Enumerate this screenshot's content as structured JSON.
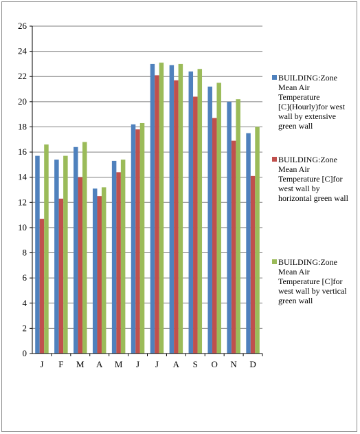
{
  "chart_data": {
    "type": "bar",
    "title": "",
    "xlabel": "",
    "ylabel": "",
    "categories": [
      "J",
      "F",
      "M",
      "A",
      "M",
      "J",
      "J",
      "A",
      "S",
      "O",
      "N",
      "D"
    ],
    "ylim": [
      0,
      26
    ],
    "yticks": [
      "0",
      "2",
      "4",
      "6",
      "8",
      "10",
      "12",
      "14",
      "16",
      "18",
      "20",
      "22",
      "24",
      "26"
    ],
    "grid": true,
    "legend_position": "right",
    "series": [
      {
        "name": "BUILDING:Zone Mean Air Temperature [C](Hourly)for west wall by extensive green wall",
        "legend_lines": [
          "BUILDING:Zone",
          "Mean Air",
          "Temperature",
          "[C](Hourly)for west",
          "wall by extensive",
          "green wall"
        ],
        "color": "#4f81bd",
        "values": [
          15.7,
          15.4,
          16.4,
          13.1,
          15.3,
          18.2,
          23.0,
          22.9,
          22.4,
          21.2,
          20.0,
          17.5
        ]
      },
      {
        "name": "BUILDING:Zone Mean Air Temperature [C]for west wall by horizontal green wall",
        "legend_lines": [
          "BUILDING:Zone",
          "Mean Air",
          "Temperature [C]for",
          "west wall by",
          "horizontal green wall"
        ],
        "color": "#c0504d",
        "values": [
          10.7,
          12.3,
          14.0,
          12.5,
          14.4,
          17.8,
          22.1,
          21.7,
          20.4,
          18.7,
          16.9,
          14.1
        ]
      },
      {
        "name": "BUILDING:Zone Mean Air Temperature [C]for west wall by vertical green wall",
        "legend_lines": [
          "BUILDING:Zone",
          "Mean Air",
          "Temperature [C]for",
          "west wall by vertical",
          "green wall"
        ],
        "color": "#9bbb59",
        "values": [
          16.6,
          15.7,
          16.8,
          13.2,
          15.4,
          18.3,
          23.1,
          23.0,
          22.6,
          21.5,
          20.2,
          18.0
        ]
      }
    ]
  }
}
